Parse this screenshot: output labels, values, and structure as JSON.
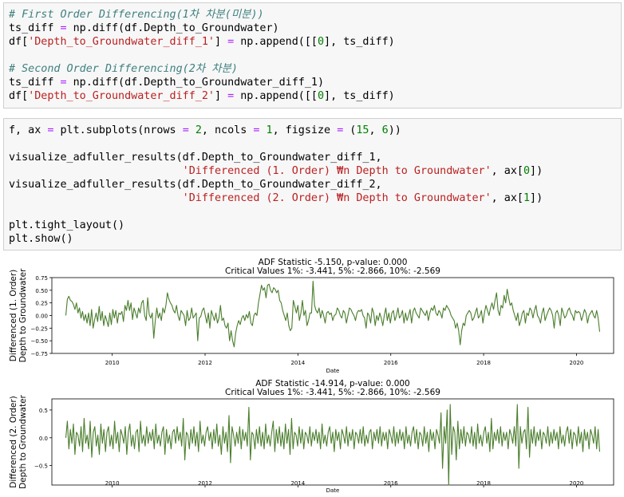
{
  "cells": [
    {
      "lines": [
        [
          {
            "c": "cm",
            "t": "# First Order Differencing(1차 차분(미분))"
          }
        ],
        [
          {
            "c": "",
            "t": "ts_diff "
          },
          {
            "c": "op",
            "t": "="
          },
          {
            "c": "",
            "t": " np.diff(df.Depth_to_Groundwater)"
          }
        ],
        [
          {
            "c": "",
            "t": "df["
          },
          {
            "c": "st",
            "t": "'Depth_to_Groundwater_diff_1'"
          },
          {
            "c": "",
            "t": "] "
          },
          {
            "c": "op",
            "t": "="
          },
          {
            "c": "",
            "t": " np.append([["
          },
          {
            "c": "nm",
            "t": "0"
          },
          {
            "c": "",
            "t": "], ts_diff)"
          }
        ],
        [
          {
            "c": "",
            "t": ""
          }
        ],
        [
          {
            "c": "cm",
            "t": "# Second Order Differencing(2차 차분)"
          }
        ],
        [
          {
            "c": "",
            "t": "ts_diff "
          },
          {
            "c": "op",
            "t": "="
          },
          {
            "c": "",
            "t": " np.diff(df.Depth_to_Groundwater_diff_1)"
          }
        ],
        [
          {
            "c": "",
            "t": "df["
          },
          {
            "c": "st",
            "t": "'Depth_to_Groundwater_diff_2'"
          },
          {
            "c": "",
            "t": "] "
          },
          {
            "c": "op",
            "t": "="
          },
          {
            "c": "",
            "t": " np.append([["
          },
          {
            "c": "nm",
            "t": "0"
          },
          {
            "c": "",
            "t": "], ts_diff)"
          }
        ]
      ]
    },
    {
      "lines": [
        [
          {
            "c": "",
            "t": "f, ax "
          },
          {
            "c": "op",
            "t": "="
          },
          {
            "c": "",
            "t": " plt.subplots(nrows "
          },
          {
            "c": "op",
            "t": "="
          },
          {
            "c": "",
            "t": " "
          },
          {
            "c": "nm",
            "t": "2"
          },
          {
            "c": "",
            "t": ", ncols "
          },
          {
            "c": "op",
            "t": "="
          },
          {
            "c": "",
            "t": " "
          },
          {
            "c": "nm",
            "t": "1"
          },
          {
            "c": "",
            "t": ", figsize "
          },
          {
            "c": "op",
            "t": "="
          },
          {
            "c": "",
            "t": " ("
          },
          {
            "c": "nm",
            "t": "15"
          },
          {
            "c": "",
            "t": ", "
          },
          {
            "c": "nm",
            "t": "6"
          },
          {
            "c": "",
            "t": "))"
          }
        ],
        [
          {
            "c": "",
            "t": ""
          }
        ],
        [
          {
            "c": "",
            "t": "visualize_adfuller_results(df.Depth_to_Groundwater_diff_1,"
          }
        ],
        [
          {
            "c": "",
            "t": "                           "
          },
          {
            "c": "st",
            "t": "'Differenced (1. Order) ₩n Depth to Groundwater'"
          },
          {
            "c": "",
            "t": ", ax["
          },
          {
            "c": "nm",
            "t": "0"
          },
          {
            "c": "",
            "t": "])"
          }
        ],
        [
          {
            "c": "",
            "t": "visualize_adfuller_results(df.Depth_to_Groundwater_diff_2,"
          }
        ],
        [
          {
            "c": "",
            "t": "                           "
          },
          {
            "c": "st",
            "t": "'Differenced (2. Order) ₩n Depth to Groundwater'"
          },
          {
            "c": "",
            "t": ", ax["
          },
          {
            "c": "nm",
            "t": "1"
          },
          {
            "c": "",
            "t": "])"
          }
        ],
        [
          {
            "c": "",
            "t": ""
          }
        ],
        [
          {
            "c": "",
            "t": "plt.tight_layout()"
          }
        ],
        [
          {
            "c": "",
            "t": "plt.show()"
          }
        ]
      ]
    }
  ],
  "chart_data": [
    {
      "type": "line",
      "title": "ADF Statistic -5.150, p-value: 0.000",
      "subtitle": "Critical Values 1%: -3.441, 5%: -2.866, 10%: -2.569",
      "xlabel": "Date",
      "ylabel_lines": [
        "Differenced (1. Order)",
        "Depth to Groundwater"
      ],
      "xlim": [
        2008.7,
        2020.8
      ],
      "ylim": [
        -0.75,
        0.75
      ],
      "xticks": [
        2010,
        2012,
        2014,
        2016,
        2018,
        2020
      ],
      "yticks": [
        0.75,
        0.5,
        0.25,
        0.0,
        -0.25,
        -0.5,
        -0.75
      ],
      "ytick_labels": [
        "0.75",
        "0.50",
        "0.25",
        "0.00",
        "−0.25",
        "−0.50",
        "−0.75"
      ],
      "color": "#4a7d2c",
      "x_start": 2009.0,
      "x_end": 2020.5,
      "series": [
        {
          "values": [
            0.0,
            0.32,
            0.38,
            0.3,
            0.28,
            0.22,
            0.12,
            0.25,
            0.05,
            0.15,
            -0.05,
            0.08,
            -0.1,
            0.02,
            -0.15,
            0.05,
            -0.2,
            0.12,
            -0.25,
            -0.08,
            0.05,
            -0.12,
            0.18,
            -0.1,
            0.08,
            -0.2,
            0.0,
            -0.1,
            -0.22,
            0.05,
            -0.18,
            0.12,
            -0.05,
            0.1,
            -0.15,
            0.05,
            0.02,
            0.08,
            -0.12,
            0.2,
            0.1,
            0.3,
            0.1,
            0.25,
            -0.08,
            0.15,
            0.05,
            -0.05,
            0.15,
            0.05,
            0.25,
            0.3,
            0.0,
            -0.1,
            0.35,
            0.02,
            -0.05,
            0.05,
            -0.45,
            -0.1,
            0.15,
            -0.05,
            0.05,
            -0.1,
            0.15,
            0.05,
            0.2,
            0.45,
            0.32,
            0.25,
            0.2,
            0.1,
            0.05,
            0.2,
            0.0,
            -0.1,
            0.1,
            0.05,
            0.0,
            -0.2,
            0.1,
            -0.1,
            -0.05,
            0.15,
            -0.05,
            0.0,
            0.05,
            -0.5,
            -0.05,
            -0.02,
            0.1,
            0.15,
            0.0,
            -0.15,
            0.05,
            -0.25,
            0.1,
            0.0,
            -0.1,
            0.05,
            -0.15,
            -0.05,
            0.2,
            -0.1,
            -0.05,
            -0.2,
            -0.25,
            -0.15,
            -0.5,
            -0.3,
            -0.5,
            -0.62,
            -0.35,
            -0.2,
            -0.1,
            -0.18,
            -0.05,
            0.0,
            -0.1,
            0.02,
            -0.05,
            0.08,
            -0.15,
            -0.2,
            0.0,
            0.05,
            0.0,
            0.25,
            0.42,
            0.6,
            0.5,
            0.55,
            0.35,
            0.6,
            0.62,
            0.5,
            0.45,
            0.55,
            0.52,
            0.45,
            0.5,
            0.3,
            0.25,
            0.1,
            0.0,
            -0.1,
            0.05,
            -0.2,
            -0.3,
            -0.25,
            0.3,
            0.18,
            0.05,
            0.2,
            -0.1,
            0.05,
            0.3,
            0.0,
            0.1,
            -0.2,
            -0.1,
            0.05,
            0.05,
            0.68,
            0.2,
            0.1,
            0.05,
            0.15,
            -0.05,
            0.1,
            0.0,
            -0.15,
            0.05,
            0.08,
            0.02,
            0.05,
            -0.1,
            0.0,
            0.02,
            0.15,
            0.1,
            0.0,
            -0.05,
            0.1,
            0.05,
            -0.15,
            0.0,
            0.15,
            0.12,
            0.05,
            0.0,
            -0.1,
            0.05,
            0.1,
            0.08,
            0.12,
            0.0,
            -0.05,
            -0.25,
            0.05,
            0.0,
            -0.15,
            0.15,
            0.05,
            -0.2,
            0.0,
            -0.1,
            0.05,
            -0.05,
            -0.2,
            0.0,
            0.15,
            -0.1,
            0.05,
            -0.15,
            0.05,
            0.1,
            -0.1,
            0.0,
            0.15,
            -0.05,
            0.0,
            0.1,
            -0.15,
            0.05,
            -0.1,
            0.0,
            0.12,
            -0.15,
            0.08,
            0.15,
            0.05,
            0.0,
            -0.05,
            0.15,
            0.1,
            0.05,
            0.0,
            0.1,
            -0.1,
            0.05,
            0.15,
            0.1,
            0.2,
            0.05,
            0.0,
            0.1,
            0.05,
            -0.05,
            0.15,
            0.1,
            0.2,
            0.15,
            0.1,
            0.0,
            -0.05,
            -0.1,
            -0.25,
            -0.15,
            -0.3,
            -0.58,
            -0.3,
            -0.15,
            -0.2,
            0.0,
            0.05,
            0.1,
            0.05,
            -0.1,
            -0.05,
            0.05,
            0.15,
            -0.05,
            0.0,
            0.1,
            -0.15,
            0.05,
            0.2,
            0.1,
            0.0,
            0.15,
            0.25,
            0.12,
            0.3,
            0.45,
            0.1,
            0.0,
            0.2,
            0.15,
            0.4,
            0.25,
            0.52,
            0.35,
            0.2,
            0.25,
            0.1,
            0.0,
            -0.1,
            0.05,
            -0.2,
            -0.1,
            0.05,
            0.1,
            -0.15,
            0.05,
            0.0,
            0.15,
            0.1,
            -0.05,
            0.1,
            0.2,
            0.0,
            -0.05,
            -0.15,
            0.05,
            0.15,
            -0.1,
            0.0,
            0.08,
            0.15,
            0.1,
            0.0,
            -0.25,
            0.05,
            0.1,
            0.0,
            -0.2,
            0.15,
            0.05,
            -0.05,
            0.0,
            0.1,
            0.15,
            0.05,
            0.0,
            -0.1,
            0.1,
            0.05,
            0.08,
            0.05,
            -0.1,
            0.0,
            0.12,
            0.05,
            -0.15,
            0.0,
            0.05,
            0.1,
            0.0,
            -0.05,
            0.1,
            -0.05,
            -0.32
          ]
        }
      ]
    },
    {
      "type": "line",
      "title": "ADF Statistic -14.914, p-value: 0.000",
      "subtitle": "Critical Values 1%: -3.441, 5%: -2.866, 10%: -2.569",
      "xlabel": "Date",
      "ylabel_lines": [
        "Differenced (2. Order)",
        "Depth to Groundwater"
      ],
      "xlim": [
        2008.7,
        2020.8
      ],
      "ylim": [
        -0.85,
        0.7
      ],
      "xticks": [
        2010,
        2012,
        2014,
        2016,
        2018,
        2020
      ],
      "yticks": [
        0.5,
        0.0,
        -0.5
      ],
      "ytick_labels": [
        "0.5",
        "0.0",
        "−0.5"
      ],
      "color": "#4a7d2c",
      "x_start": 2009.0,
      "x_end": 2020.5,
      "series": [
        {
          "values": [
            0.0,
            0.3,
            -0.2,
            0.15,
            -0.1,
            0.25,
            -0.3,
            0.1,
            0.05,
            -0.15,
            0.2,
            -0.25,
            0.35,
            -0.1,
            0.05,
            -0.2,
            0.3,
            -0.35,
            0.1,
            0.2,
            -0.15,
            0.05,
            -0.3,
            0.25,
            -0.1,
            0.15,
            -0.25,
            0.1,
            0.2,
            -0.15,
            0.05,
            -0.2,
            0.3,
            -0.1,
            0.1,
            -0.25,
            0.15,
            0.05,
            -0.1,
            0.2,
            -0.3,
            0.1,
            0.25,
            -0.15,
            0.05,
            -0.2,
            0.1,
            0.15,
            -0.25,
            0.3,
            -0.1,
            0.05,
            -0.15,
            0.2,
            -0.1,
            0.1,
            -0.05,
            0.15,
            -0.2,
            0.25,
            -0.1,
            0.05,
            -0.15,
            0.1,
            0.2,
            -0.3,
            0.15,
            -0.1,
            0.05,
            -0.2,
            0.1,
            0.15,
            -0.1,
            0.2,
            -0.05,
            0.1,
            -0.15,
            0.35,
            -0.4,
            0.1,
            0.05,
            -0.2,
            0.15,
            -0.1,
            0.2,
            -0.15,
            0.1,
            -0.25,
            0.3,
            -0.1,
            0.05,
            -0.15,
            0.1,
            0.2,
            -0.05,
            0.1,
            -0.2,
            0.15,
            -0.1,
            0.25,
            -0.15,
            0.05,
            -0.3,
            0.2,
            -0.1,
            0.1,
            -0.25,
            0.4,
            -0.45,
            0.2,
            0.05,
            -0.15,
            0.1,
            -0.1,
            0.2,
            -0.2,
            0.15,
            -0.05,
            0.1,
            -0.15,
            0.55,
            -0.4,
            0.1,
            0.05,
            -0.2,
            0.15,
            -0.1,
            0.2,
            -0.15,
            0.1,
            -0.2,
            0.25,
            -0.1,
            0.05,
            -0.15,
            0.1,
            0.3,
            -0.25,
            0.15,
            -0.1,
            0.2,
            -0.15,
            0.1,
            -0.2,
            0.25,
            -0.1,
            0.15,
            -0.3,
            0.35,
            -0.2,
            0.1,
            0.05,
            -0.15,
            0.2,
            -0.1,
            0.15,
            -0.2,
            0.1,
            0.05,
            -0.1,
            0.2,
            -0.15,
            0.1,
            -0.05,
            0.15,
            -0.1,
            0.1,
            -0.2,
            0.25,
            -0.1,
            0.05,
            -0.15,
            0.1,
            0.2,
            -0.1,
            0.1,
            -0.25,
            0.15,
            -0.05,
            0.1,
            -0.2,
            0.15,
            0.05,
            -0.1,
            0.2,
            -0.15,
            0.1,
            -0.05,
            0.15,
            -0.2,
            0.1,
            0.05,
            -0.1,
            0.15,
            -0.1,
            0.2,
            -0.15,
            0.05,
            -0.1,
            0.1,
            0.15,
            -0.2,
            0.1,
            -0.05,
            0.15,
            -0.1,
            0.2,
            -0.15,
            0.1,
            -0.05,
            0.1,
            -0.2,
            0.15,
            0.05,
            -0.1,
            0.2,
            -0.15,
            0.1,
            -0.1,
            0.15,
            -0.05,
            0.1,
            -0.2,
            0.2,
            -0.1,
            0.05,
            -0.15,
            0.1,
            0.2,
            -0.1,
            0.15,
            -0.2,
            0.1,
            0.05,
            -0.15,
            0.2,
            -0.1,
            0.1,
            -0.25,
            0.15,
            -0.05,
            0.1,
            -0.2,
            0.15,
            0.05,
            -0.1,
            0.45,
            -0.55,
            0.2,
            -0.1,
            0.5,
            -0.85,
            0.6,
            -0.3,
            0.2,
            0.1,
            -0.4,
            0.3,
            -0.2,
            0.15,
            -0.1,
            0.2,
            -0.15,
            0.1,
            0.05,
            -0.1,
            0.2,
            -0.15,
            0.1,
            -0.2,
            0.25,
            -0.1,
            0.05,
            -0.15,
            0.1,
            0.2,
            -0.1,
            0.1,
            -0.25,
            0.35,
            -0.2,
            0.1,
            -0.05,
            0.15,
            -0.1,
            0.2,
            -0.15,
            0.1,
            -0.05,
            0.1,
            -0.2,
            0.15,
            0.05,
            -0.1,
            0.2,
            -0.15,
            0.6,
            -0.55,
            0.2,
            -0.1,
            0.1,
            0.15,
            -0.2,
            0.55,
            -0.35,
            0.15,
            -0.1,
            0.2,
            -0.15,
            0.1,
            -0.05,
            0.15,
            -0.2,
            0.1,
            0.05,
            -0.1,
            0.2,
            -0.15,
            0.1,
            -0.1,
            0.15,
            -0.05,
            0.1,
            -0.2,
            0.2,
            -0.1,
            0.05,
            -0.15,
            0.1,
            0.2,
            -0.1,
            0.15,
            -0.2,
            0.1,
            0.05,
            -0.15,
            0.2,
            -0.1,
            0.1,
            -0.25,
            0.15,
            -0.05,
            0.1,
            -0.2,
            0.15,
            0.05,
            -0.1,
            0.2,
            -0.2,
            0.15,
            -0.25
          ]
        }
      ]
    }
  ]
}
